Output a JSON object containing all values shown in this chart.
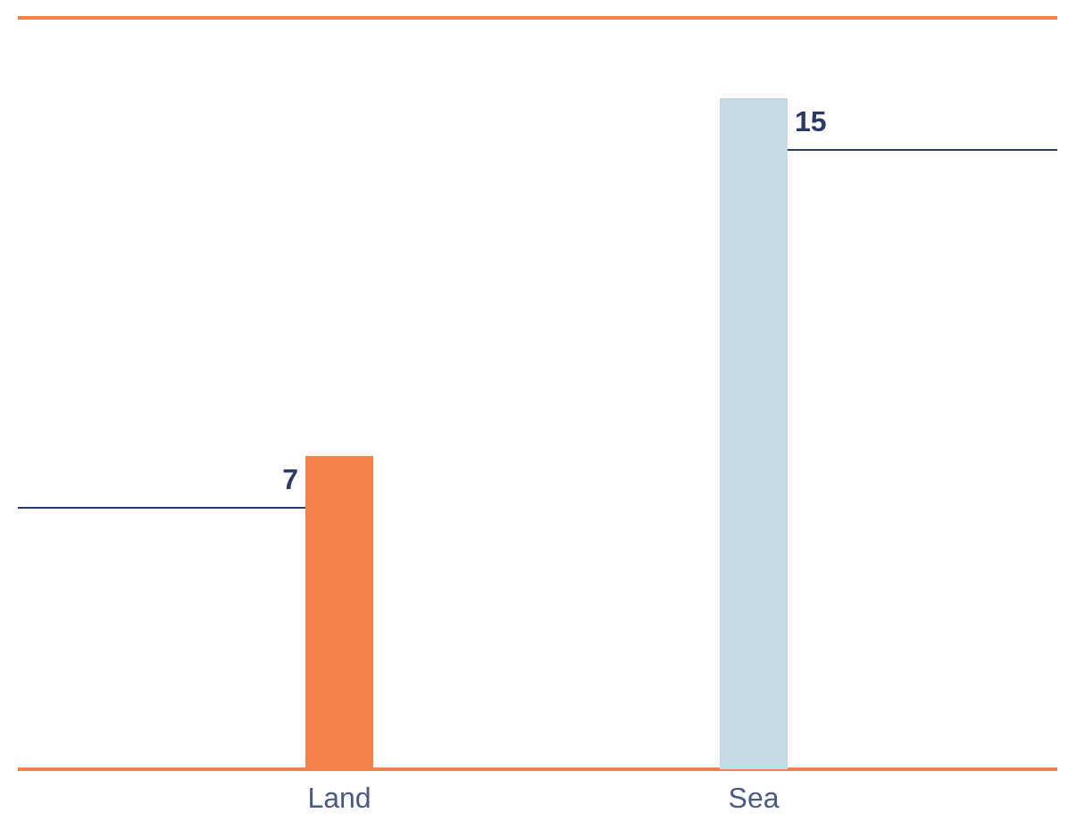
{
  "chart_data": {
    "type": "bar",
    "categories": [
      "Land",
      "Sea"
    ],
    "values": [
      7,
      15
    ],
    "colors": [
      "#f4804a",
      "#c6dae3"
    ],
    "data_labels": true
  }
}
